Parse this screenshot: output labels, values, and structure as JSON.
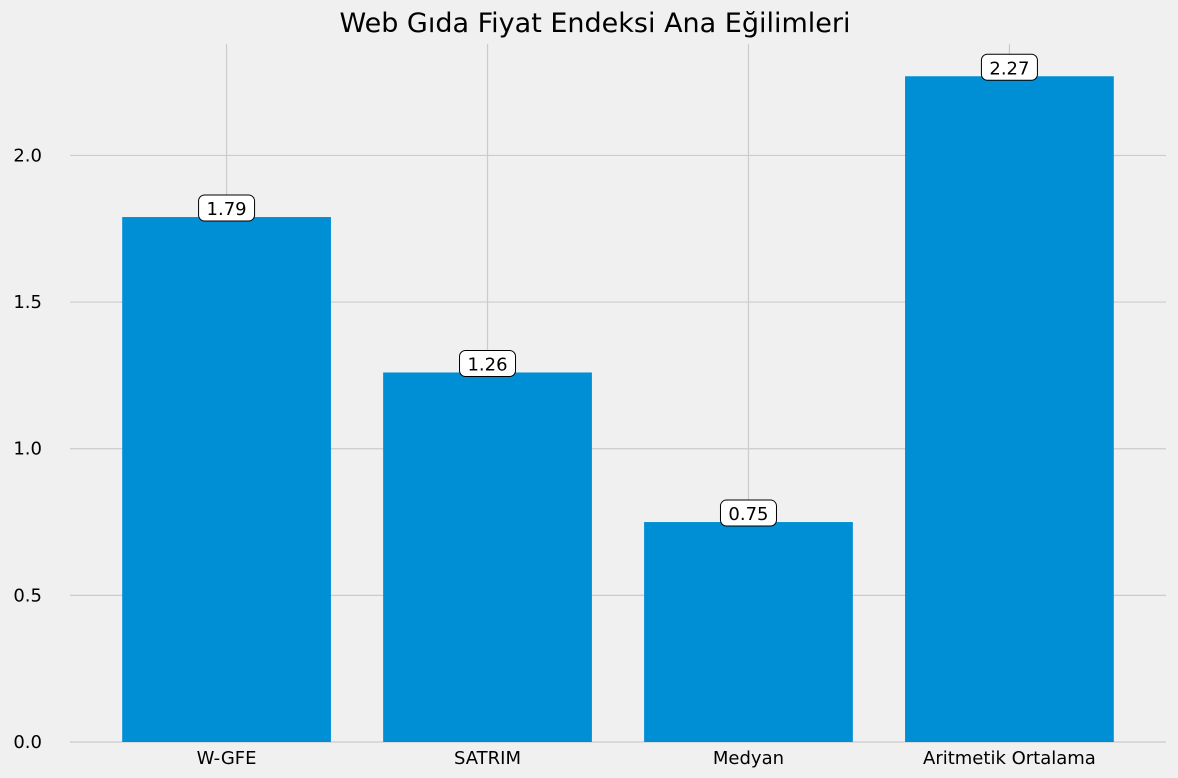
{
  "chart_data": {
    "type": "bar",
    "title": "Web Gıda Fiyat Endeksi Ana Eğilimleri",
    "categories": [
      "W-GFE",
      "SATRIM",
      "Medyan",
      "Aritmetik Ortalama"
    ],
    "values": [
      1.79,
      1.26,
      0.75,
      2.27
    ],
    "data_labels": [
      "1.79",
      "1.26",
      "0.75",
      "2.27"
    ],
    "xlabel": "",
    "ylabel": "",
    "ylim": [
      0,
      2.38
    ],
    "yticks": [
      0.0,
      0.5,
      1.0,
      1.5,
      2.0
    ],
    "ytick_labels": [
      "0.0",
      "0.5",
      "1.0",
      "1.5",
      "2.0"
    ],
    "grid": true,
    "bar_color": "#008fd5",
    "background_color": "#f0f0f0",
    "grid_color": "#cbcbcb"
  }
}
